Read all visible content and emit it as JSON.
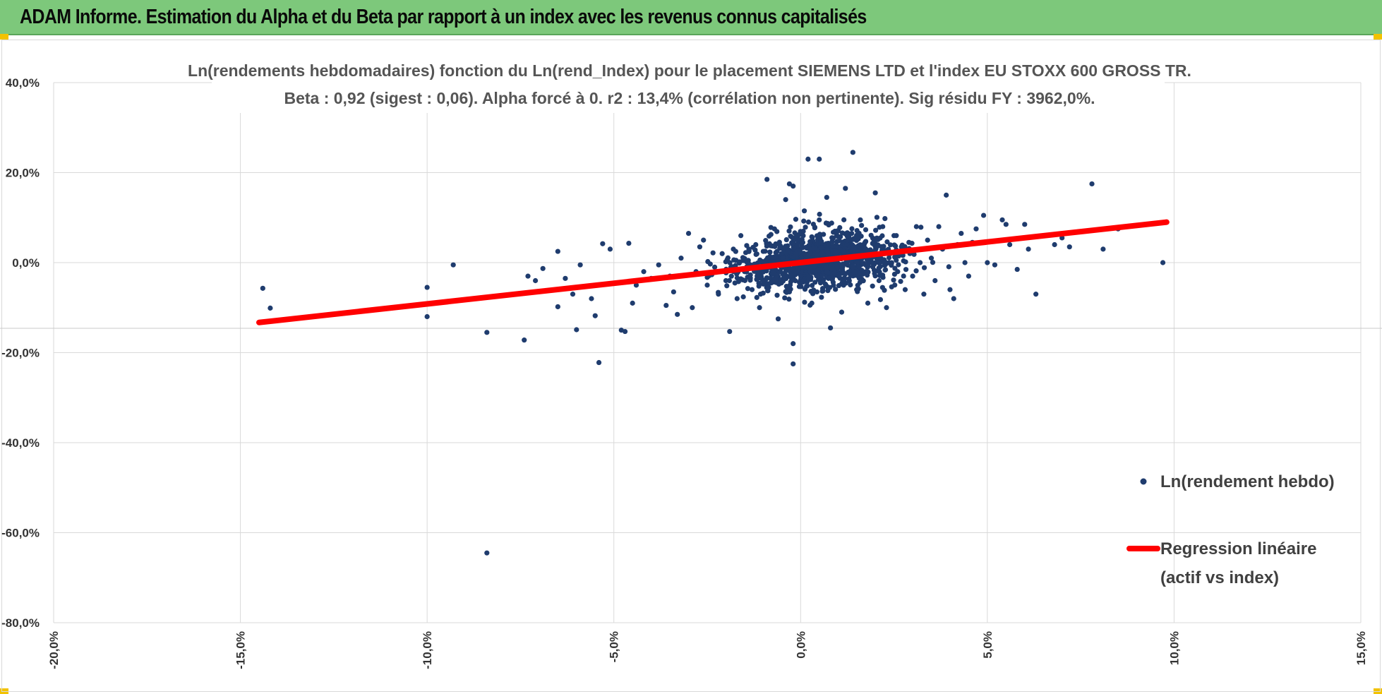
{
  "header": {
    "title": "ADAM Informe. Estimation du Alpha et du Beta par rapport à un index avec les revenus connus capitalisés"
  },
  "colors": {
    "header_bg": "#7dc87b",
    "points": "#1f3c6e",
    "regression": "#ff0000",
    "grid": "#d9d9d9",
    "accent_corner": "#f2c200"
  },
  "chart_data": {
    "type": "scatter",
    "title": "Ln(rendements hebdomadaires) fonction du Ln(rend_Index) pour le placement SIEMENS LTD et l'index EU STOXX 600 GROSS TR.",
    "subtitle": "Beta : 0,92 (sigest : 0,06). Alpha forcé à 0. r2 : 13,4% (corrélation non pertinente). Sig résidu FY : 3962,0%.",
    "xlim": [
      -0.2,
      0.15
    ],
    "ylim": [
      -0.8,
      0.4
    ],
    "x_ticks": [
      "-20,0%",
      "-15,0%",
      "-10,0%",
      "-5,0%",
      "0,0%",
      "5,0%",
      "10,0%",
      "15,0%"
    ],
    "y_ticks": [
      "40,0%",
      "20,0%",
      "0,0%",
      "-20,0%",
      "-40,0%",
      "-60,0%",
      "-80,0%"
    ],
    "grid": true,
    "legend_position": "right",
    "series": [
      {
        "name": "Ln(rendement hebdo)",
        "kind": "scatter",
        "points": [
          [
            -0.144,
            -0.057
          ],
          [
            -0.142,
            -0.101
          ],
          [
            -0.1,
            -0.055
          ],
          [
            -0.1,
            -0.12
          ],
          [
            -0.093,
            -0.005
          ],
          [
            -0.084,
            -0.155
          ],
          [
            -0.084,
            -0.645
          ],
          [
            -0.074,
            -0.172
          ],
          [
            -0.073,
            -0.03
          ],
          [
            -0.071,
            -0.04
          ],
          [
            -0.069,
            -0.013
          ],
          [
            -0.065,
            0.025
          ],
          [
            -0.065,
            -0.098
          ],
          [
            -0.063,
            -0.035
          ],
          [
            -0.061,
            -0.07
          ],
          [
            -0.06,
            -0.149
          ],
          [
            -0.059,
            -0.005
          ],
          [
            -0.056,
            -0.08
          ],
          [
            -0.055,
            -0.118
          ],
          [
            -0.054,
            -0.222
          ],
          [
            -0.053,
            0.042
          ],
          [
            -0.051,
            0.03
          ],
          [
            -0.049,
            -0.045
          ],
          [
            -0.048,
            -0.15
          ],
          [
            -0.047,
            -0.153
          ],
          [
            -0.046,
            0.043
          ],
          [
            -0.045,
            -0.09
          ],
          [
            -0.044,
            -0.05
          ],
          [
            -0.042,
            -0.02
          ],
          [
            -0.04,
            -0.035
          ],
          [
            -0.038,
            -0.005
          ],
          [
            -0.036,
            -0.095
          ],
          [
            -0.035,
            -0.03
          ],
          [
            -0.034,
            -0.065
          ],
          [
            -0.033,
            -0.115
          ],
          [
            -0.032,
            0.01
          ],
          [
            -0.03,
            0.065
          ],
          [
            -0.029,
            -0.1
          ],
          [
            -0.028,
            -0.02
          ],
          [
            -0.027,
            0.035
          ],
          [
            -0.026,
            0.05
          ],
          [
            -0.025,
            -0.05
          ],
          [
            -0.023,
            -0.01
          ],
          [
            -0.022,
            -0.07
          ],
          [
            -0.021,
            0.02
          ],
          [
            -0.02,
            -0.04
          ],
          [
            -0.019,
            -0.153
          ],
          [
            -0.018,
            0.03
          ],
          [
            -0.017,
            -0.08
          ],
          [
            -0.016,
            0.06
          ],
          [
            -0.015,
            -0.02
          ],
          [
            -0.014,
            0.005
          ],
          [
            -0.013,
            -0.06
          ],
          [
            -0.012,
            0.04
          ],
          [
            -0.011,
            -0.1
          ],
          [
            -0.01,
            0.025
          ],
          [
            -0.009,
            0.185
          ],
          [
            -0.008,
            -0.035
          ],
          [
            -0.007,
            0.075
          ],
          [
            -0.006,
            -0.125
          ],
          [
            -0.005,
            0.02
          ],
          [
            -0.004,
            0.14
          ],
          [
            -0.003,
            -0.065
          ],
          [
            -0.003,
            0.175
          ],
          [
            -0.002,
            0.17
          ],
          [
            -0.001,
            -0.02
          ],
          [
            0.0,
            0.045
          ],
          [
            -0.002,
            -0.18
          ],
          [
            -0.002,
            -0.225
          ],
          [
            0.001,
            0.115
          ],
          [
            0.002,
            0.23
          ],
          [
            0.003,
            -0.09
          ],
          [
            0.004,
            0.03
          ],
          [
            0.005,
            0.095
          ],
          [
            0.005,
            0.23
          ],
          [
            0.006,
            -0.04
          ],
          [
            0.007,
            0.145
          ],
          [
            0.008,
            -0.145
          ],
          [
            0.009,
            0.02
          ],
          [
            0.01,
            0.07
          ],
          [
            0.011,
            -0.11
          ],
          [
            0.012,
            0.165
          ],
          [
            0.013,
            0.02
          ],
          [
            0.014,
            0.245
          ],
          [
            0.015,
            -0.06
          ],
          [
            0.016,
            0.095
          ],
          [
            0.017,
            0.04
          ],
          [
            0.018,
            -0.09
          ],
          [
            0.019,
            0.01
          ],
          [
            0.02,
            0.155
          ],
          [
            0.021,
            -0.04
          ],
          [
            0.022,
            0.08
          ],
          [
            0.023,
            -0.1
          ],
          [
            0.024,
            0.02
          ],
          [
            0.025,
            0.06
          ],
          [
            0.026,
            -0.02
          ],
          [
            0.027,
            0.035
          ],
          [
            0.028,
            -0.06
          ],
          [
            0.029,
            0.045
          ],
          [
            0.03,
            -0.03
          ],
          [
            0.031,
            0.08
          ],
          [
            0.032,
            0.0
          ],
          [
            0.033,
            -0.07
          ],
          [
            0.034,
            0.05
          ],
          [
            0.035,
            0.01
          ],
          [
            0.036,
            -0.04
          ],
          [
            0.037,
            0.08
          ],
          [
            0.038,
            0.03
          ],
          [
            0.039,
            0.15
          ],
          [
            0.04,
            -0.06
          ],
          [
            0.041,
            -0.08
          ],
          [
            0.042,
            0.04
          ],
          [
            0.043,
            0.065
          ],
          [
            0.044,
            0.0
          ],
          [
            0.045,
            -0.03
          ],
          [
            0.046,
            0.045
          ],
          [
            0.047,
            0.075
          ],
          [
            0.049,
            0.105
          ],
          [
            0.05,
            0.0
          ],
          [
            0.052,
            -0.005
          ],
          [
            0.054,
            0.095
          ],
          [
            0.055,
            0.085
          ],
          [
            0.056,
            0.04
          ],
          [
            0.058,
            -0.015
          ],
          [
            0.06,
            0.085
          ],
          [
            0.061,
            0.03
          ],
          [
            0.063,
            -0.07
          ],
          [
            0.065,
            0.06
          ],
          [
            0.068,
            0.04
          ],
          [
            0.072,
            0.035
          ],
          [
            0.078,
            0.175
          ],
          [
            0.081,
            0.03
          ],
          [
            0.097,
            0.0
          ],
          [
            0.085,
            0.075
          ],
          [
            0.07,
            0.055
          ]
        ]
      },
      {
        "name": "Regression linéaire (actif vs index)",
        "legend_lines": [
          "Regression linéaire",
          "(actif vs index)"
        ],
        "kind": "line",
        "points": [
          [
            -0.145,
            -0.133
          ],
          [
            0.098,
            0.09
          ]
        ]
      }
    ]
  }
}
